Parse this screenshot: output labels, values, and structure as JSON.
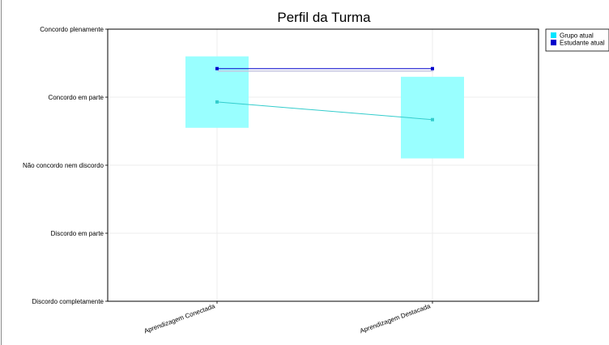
{
  "chart_data": {
    "type": "line",
    "title": "Perfil da Turma",
    "categories": [
      "Aprendizagem Conectada",
      "Aprendizagem Destacada"
    ],
    "y_levels": [
      "Discordo completamente",
      "Discordo em parte",
      "Não concordo nem discordo",
      "Concordo em parte",
      "Concordo plenamente"
    ],
    "ylim": [
      1,
      5
    ],
    "series": [
      {
        "name": "Grupo atual",
        "values": [
          3.93,
          3.67
        ],
        "range_low": [
          3.55,
          3.1
        ],
        "range_high": [
          4.6,
          4.3
        ],
        "color": "#33cccc",
        "band_color": "#99ffff"
      },
      {
        "name": "Estudante atual",
        "values": [
          4.42,
          4.42
        ],
        "color": "#0000cc"
      }
    ],
    "grid": true,
    "legend": "top-right"
  }
}
